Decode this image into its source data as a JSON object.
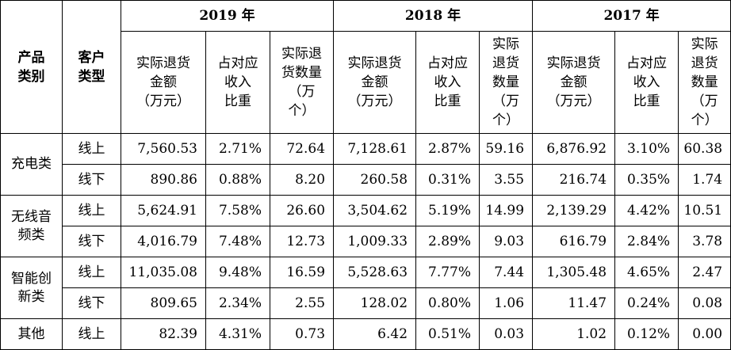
{
  "header": {
    "product_category": "产品\n类别",
    "customer_type": "客户\n类型",
    "years": [
      "2019 年",
      "2018 年",
      "2017 年"
    ],
    "sub_amount": "实际退货\n金额\n（万元）",
    "sub_ratio": "占对应\n收入\n比重",
    "sub_qty_2019": "实际退\n货数量\n（万\n个）",
    "sub_qty_narrow": "实际\n退货\n数量\n（万\n个）"
  },
  "categories": [
    {
      "name": "充电类",
      "rows": [
        {
          "type": "线上",
          "values": [
            "7,560.53",
            "2.71%",
            "72.64",
            "7,128.61",
            "2.87%",
            "59.16",
            "6,876.92",
            "3.10%",
            "60.38"
          ]
        },
        {
          "type": "线下",
          "values": [
            "890.86",
            "0.88%",
            "8.20",
            "260.58",
            "0.31%",
            "3.55",
            "216.74",
            "0.35%",
            "1.74"
          ]
        }
      ]
    },
    {
      "name": "无线音\n频类",
      "rows": [
        {
          "type": "线上",
          "values": [
            "5,624.91",
            "7.58%",
            "26.60",
            "3,504.62",
            "5.19%",
            "14.99",
            "2,139.29",
            "4.42%",
            "10.51"
          ]
        },
        {
          "type": "线下",
          "values": [
            "4,016.79",
            "7.48%",
            "12.73",
            "1,009.33",
            "2.89%",
            "9.03",
            "616.79",
            "2.84%",
            "3.78"
          ]
        }
      ]
    },
    {
      "name": "智能创\n新类",
      "rows": [
        {
          "type": "线上",
          "values": [
            "11,035.08",
            "9.48%",
            "16.59",
            "5,528.63",
            "7.77%",
            "7.44",
            "1,305.48",
            "4.65%",
            "2.47"
          ]
        },
        {
          "type": "线下",
          "values": [
            "809.65",
            "2.34%",
            "2.55",
            "128.02",
            "0.80%",
            "1.06",
            "11.47",
            "0.24%",
            "0.08"
          ]
        }
      ]
    },
    {
      "name": "其他",
      "rows": [
        {
          "type": "线上",
          "values": [
            "82.39",
            "4.31%",
            "0.73",
            "6.42",
            "0.51%",
            "0.03",
            "1.02",
            "0.12%",
            "0.00"
          ]
        }
      ]
    }
  ]
}
